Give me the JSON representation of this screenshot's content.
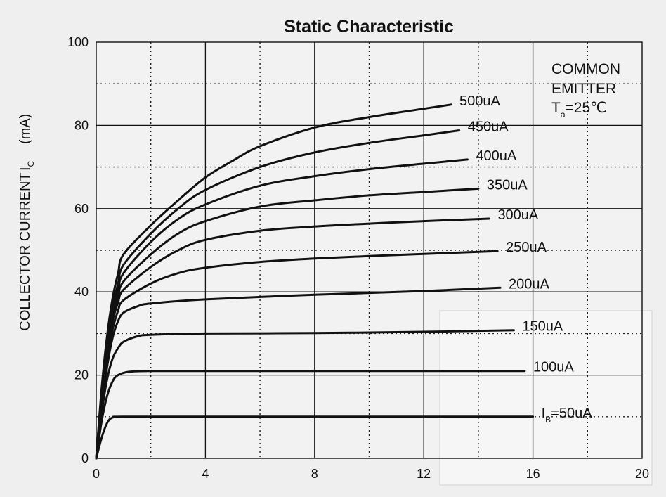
{
  "chart_data": {
    "type": "line",
    "title": "Static Characteristic",
    "ylabel_main": "COLLECTOR CURRENT",
    "ylabel_symbol": "I",
    "ylabel_sub": "C",
    "ylabel_unit": "(mA)",
    "xlabel": "",
    "xlim": [
      0,
      20
    ],
    "ylim": [
      0,
      100
    ],
    "x_ticks": [
      "0",
      "4",
      "8",
      "12",
      "16",
      "20"
    ],
    "y_ticks": [
      "0",
      "20",
      "40",
      "60",
      "80",
      "100"
    ],
    "grid": "solid major lines every 4 (x) and 20 (y); dotted minor lines at midpoints",
    "annotation": {
      "line1": "COMMON",
      "line2": "EMITTER",
      "t_symbol": "T",
      "t_sub": "a",
      "t_value": "=25℃"
    },
    "series": [
      {
        "name": "I_B=50uA",
        "label_prefix": "I",
        "label_sub": "B",
        "label_rest": "=50uA",
        "points": [
          [
            0,
            0
          ],
          [
            0.2,
            5
          ],
          [
            0.4,
            8.5
          ],
          [
            0.6,
            9.8
          ],
          [
            1,
            10
          ],
          [
            4,
            10
          ],
          [
            8,
            10
          ],
          [
            12,
            10
          ],
          [
            16,
            10
          ]
        ]
      },
      {
        "name": "100uA",
        "label": "100uA",
        "points": [
          [
            0,
            0
          ],
          [
            0.2,
            9
          ],
          [
            0.4,
            15
          ],
          [
            0.6,
            18.5
          ],
          [
            0.8,
            20
          ],
          [
            1.2,
            20.8
          ],
          [
            2,
            21
          ],
          [
            4,
            21
          ],
          [
            8,
            21
          ],
          [
            12,
            21
          ],
          [
            15.7,
            21
          ]
        ]
      },
      {
        "name": "150uA",
        "label": "150uA",
        "points": [
          [
            0,
            0
          ],
          [
            0.2,
            11
          ],
          [
            0.4,
            19
          ],
          [
            0.6,
            24
          ],
          [
            0.8,
            26.5
          ],
          [
            1,
            28
          ],
          [
            1.5,
            29.3
          ],
          [
            2,
            29.7
          ],
          [
            4,
            30
          ],
          [
            8,
            30.1
          ],
          [
            12,
            30.4
          ],
          [
            15.3,
            30.8
          ]
        ]
      },
      {
        "name": "200uA",
        "label": "200uA",
        "points": [
          [
            0,
            0
          ],
          [
            0.2,
            12
          ],
          [
            0.4,
            22
          ],
          [
            0.6,
            29
          ],
          [
            0.8,
            33
          ],
          [
            1,
            35
          ],
          [
            1.5,
            36.5
          ],
          [
            2,
            37.2
          ],
          [
            4,
            38.2
          ],
          [
            8,
            39.3
          ],
          [
            12,
            40.2
          ],
          [
            14.8,
            41
          ]
        ]
      },
      {
        "name": "250uA",
        "label": "250uA",
        "points": [
          [
            0,
            0
          ],
          [
            0.2,
            13
          ],
          [
            0.4,
            24
          ],
          [
            0.6,
            31
          ],
          [
            0.8,
            35.5
          ],
          [
            1,
            38
          ],
          [
            2,
            42
          ],
          [
            3,
            44.5
          ],
          [
            4,
            45.8
          ],
          [
            6,
            47.2
          ],
          [
            8,
            48
          ],
          [
            10,
            48.6
          ],
          [
            12,
            49.1
          ],
          [
            14.7,
            49.8
          ]
        ]
      },
      {
        "name": "300uA",
        "label": "300uA",
        "points": [
          [
            0,
            0
          ],
          [
            0.2,
            14
          ],
          [
            0.4,
            25
          ],
          [
            0.6,
            33
          ],
          [
            0.8,
            37.5
          ],
          [
            1,
            40.5
          ],
          [
            2,
            46
          ],
          [
            3,
            50
          ],
          [
            4,
            52.5
          ],
          [
            6,
            54.7
          ],
          [
            8,
            55.7
          ],
          [
            10,
            56.4
          ],
          [
            12,
            57
          ],
          [
            14.4,
            57.6
          ]
        ]
      },
      {
        "name": "350uA",
        "label": "350uA",
        "points": [
          [
            0,
            0
          ],
          [
            0.2,
            15
          ],
          [
            0.4,
            26
          ],
          [
            0.6,
            34
          ],
          [
            0.8,
            39
          ],
          [
            1,
            42.5
          ],
          [
            2,
            49
          ],
          [
            3,
            54
          ],
          [
            4,
            57
          ],
          [
            6,
            60.5
          ],
          [
            8,
            62
          ],
          [
            10,
            63.2
          ],
          [
            12,
            64
          ],
          [
            14,
            64.8
          ]
        ]
      },
      {
        "name": "400uA",
        "label": "400uA",
        "points": [
          [
            0,
            0
          ],
          [
            0.2,
            15.5
          ],
          [
            0.4,
            27
          ],
          [
            0.6,
            35
          ],
          [
            0.8,
            40.5
          ],
          [
            1,
            44.5
          ],
          [
            2,
            52
          ],
          [
            3,
            57.5
          ],
          [
            4,
            61
          ],
          [
            6,
            65.5
          ],
          [
            8,
            67.8
          ],
          [
            10,
            69.5
          ],
          [
            12,
            70.8
          ],
          [
            13.6,
            71.8
          ]
        ]
      },
      {
        "name": "450uA",
        "label": "450uA",
        "points": [
          [
            0,
            0
          ],
          [
            0.2,
            16
          ],
          [
            0.4,
            28
          ],
          [
            0.6,
            36.5
          ],
          [
            0.8,
            42
          ],
          [
            1,
            46.5
          ],
          [
            2,
            54
          ],
          [
            3,
            60
          ],
          [
            4,
            64.5
          ],
          [
            6,
            70
          ],
          [
            8,
            73.5
          ],
          [
            10,
            75.8
          ],
          [
            12,
            77.6
          ],
          [
            13.3,
            78.8
          ]
        ]
      },
      {
        "name": "500uA",
        "label": "500uA",
        "points": [
          [
            0,
            0
          ],
          [
            0.2,
            17
          ],
          [
            0.4,
            29.5
          ],
          [
            0.6,
            38.5
          ],
          [
            0.8,
            44.5
          ],
          [
            1,
            49
          ],
          [
            2,
            56
          ],
          [
            3,
            62
          ],
          [
            4,
            67.5
          ],
          [
            5,
            71.5
          ],
          [
            6,
            75
          ],
          [
            8,
            79.5
          ],
          [
            10,
            82
          ],
          [
            12,
            84
          ],
          [
            13,
            85
          ]
        ]
      }
    ]
  }
}
